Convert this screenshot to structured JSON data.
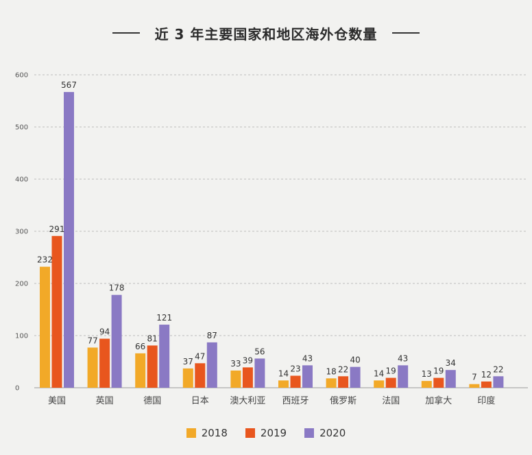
{
  "colors": {
    "2018": "#f2a928",
    "2019": "#e8561e",
    "2020": "#8a79c4",
    "grid": "#bcbcbc",
    "background": "#f2f2f0"
  },
  "chart_data": {
    "type": "bar",
    "title": "近 3 年主要国家和地区海外仓数量",
    "xlabel": "",
    "ylabel": "",
    "ylim": [
      0,
      600
    ],
    "yticks": [
      0,
      100,
      200,
      300,
      400,
      500,
      600
    ],
    "grid": true,
    "legend_position": "bottom",
    "categories": [
      "美国",
      "英国",
      "德国",
      "日本",
      "澳大利亚",
      "西班牙",
      "俄罗斯",
      "法国",
      "加拿大",
      "印度"
    ],
    "series": [
      {
        "name": "2018",
        "values": [
          232,
          77,
          66,
          37,
          33,
          14,
          18,
          14,
          13,
          7
        ]
      },
      {
        "name": "2019",
        "values": [
          291,
          94,
          81,
          47,
          39,
          23,
          22,
          19,
          19,
          12
        ]
      },
      {
        "name": "2020",
        "values": [
          567,
          178,
          121,
          87,
          56,
          43,
          40,
          43,
          34,
          22
        ]
      }
    ]
  }
}
